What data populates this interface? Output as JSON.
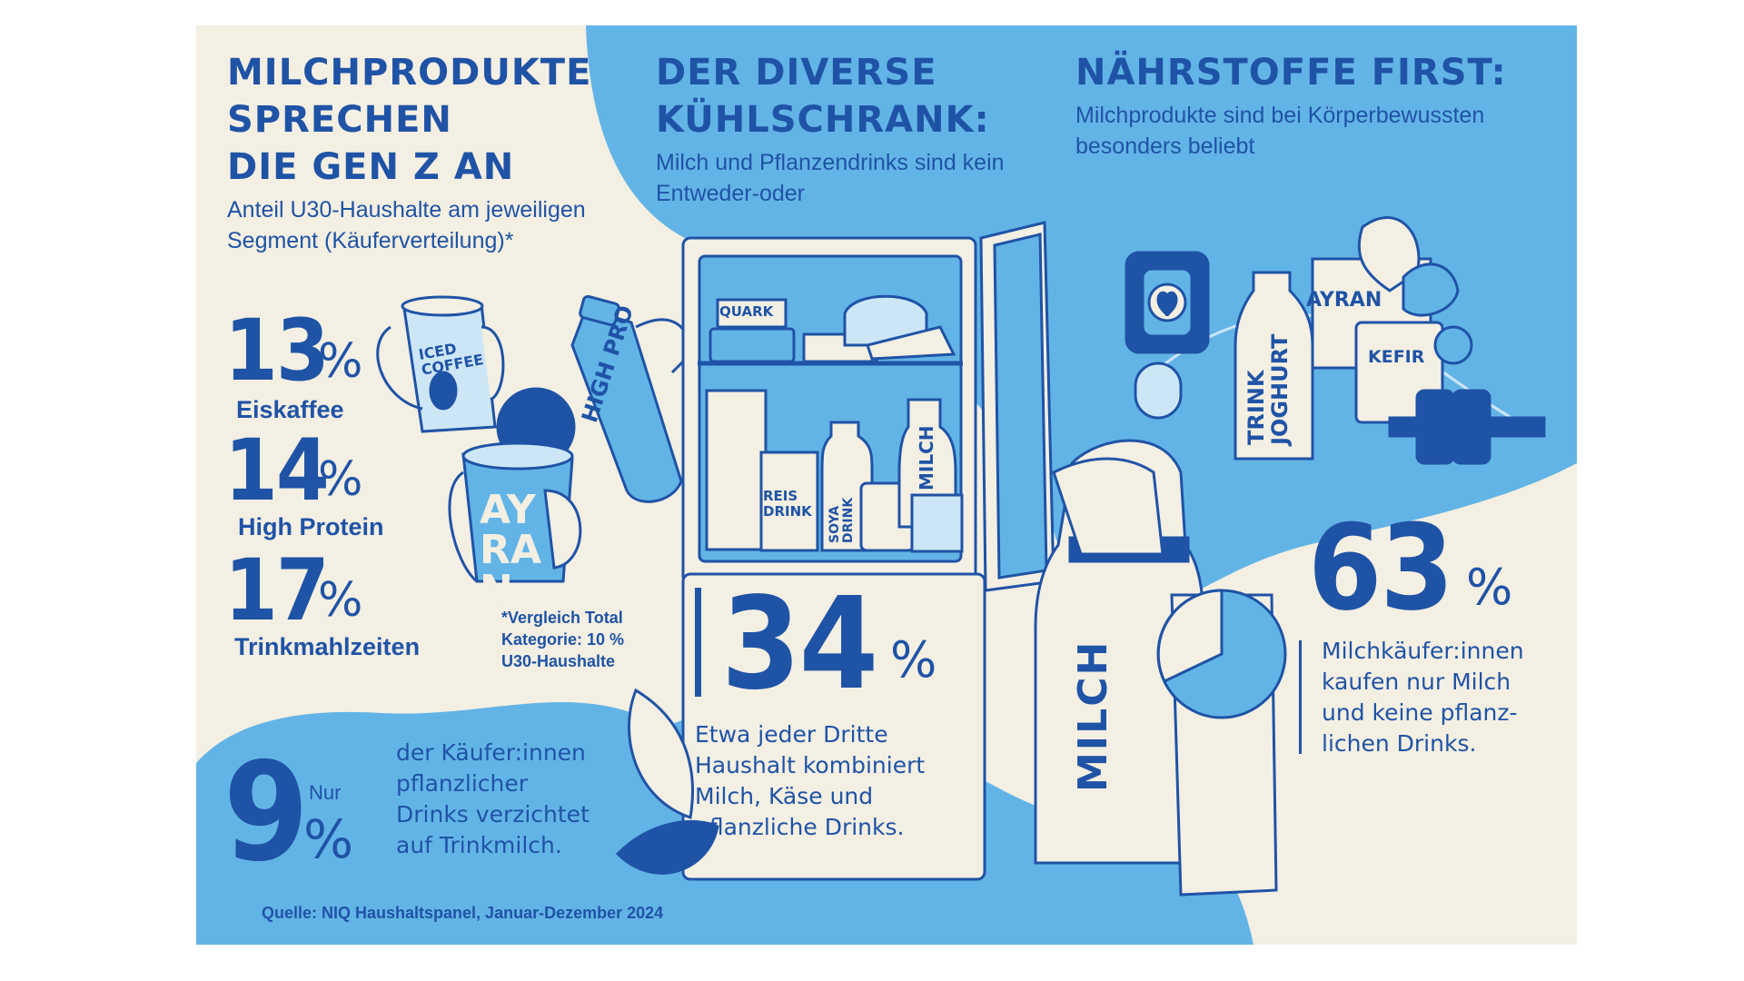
{
  "sections": {
    "left": {
      "headline": "MILCHPRODUKTE\nSPRECHEN\nDIE GEN Z AN",
      "subtitle": "Anteil U30-Haushalte am jeweiligen\nSegment (Käuferverteilung)*",
      "stats": [
        {
          "value": "13",
          "unit": "%",
          "label": "Eiskaffee"
        },
        {
          "value": "14",
          "unit": "%",
          "label": "High Protein"
        },
        {
          "value": "17",
          "unit": "%",
          "label": "Trinkmahlzeiten"
        }
      ],
      "footnote": "*Vergleich Total\nKategorie: 10 %\nU30-Haushalte",
      "nur": {
        "value": "9",
        "prefix": "Nur",
        "unit": "%",
        "text": "der Käufer:innen\npflanzlicher\nDrinks verzichtet\nauf Trinkmilch."
      }
    },
    "middle": {
      "headline": "DER DIVERSE\nKÜHLSCHRANK:",
      "subtitle": "Milch und Pflanzendrinks sind kein\nEntweder-oder",
      "stat": {
        "value": "34",
        "unit": "%",
        "text": "Etwa jeder Dritte\nHaushalt kombiniert\nMilch, Käse und\npflanzliche Drinks."
      }
    },
    "right": {
      "headline": "NÄHRSTOFFE FIRST:",
      "subtitle": "Milchprodukte sind bei Körperbewussten\nbesonders beliebt",
      "stat": {
        "value": "63",
        "unit": "%",
        "text": "Milchkäufer:innen\nkaufen nur Milch\nund keine pflanz-\nlichen Drinks."
      }
    }
  },
  "illustration_labels": {
    "iced_coffee": "ICED\nCOFFEE",
    "high_pro": "HIGH PRO",
    "ayran_cup": "AYRAN",
    "quark": "QUARK",
    "reis": "REIS\nDRINK",
    "soya": "SOYA\nDRINK",
    "milch_bottle": "MILCH",
    "milch_big": "MILCH",
    "trinkjoghurt": "TRINK\nJOGHURT",
    "ayran_box": "AYRAN",
    "kefir": "KEFIR"
  },
  "source": "Quelle: NIQ Haushaltspanel, Januar-Dezember 2024",
  "colors": {
    "cream": "#f3efe2",
    "light_blue": "#63b4e6",
    "navy": "#1f53a6",
    "pale_blue": "#cde6f6"
  }
}
